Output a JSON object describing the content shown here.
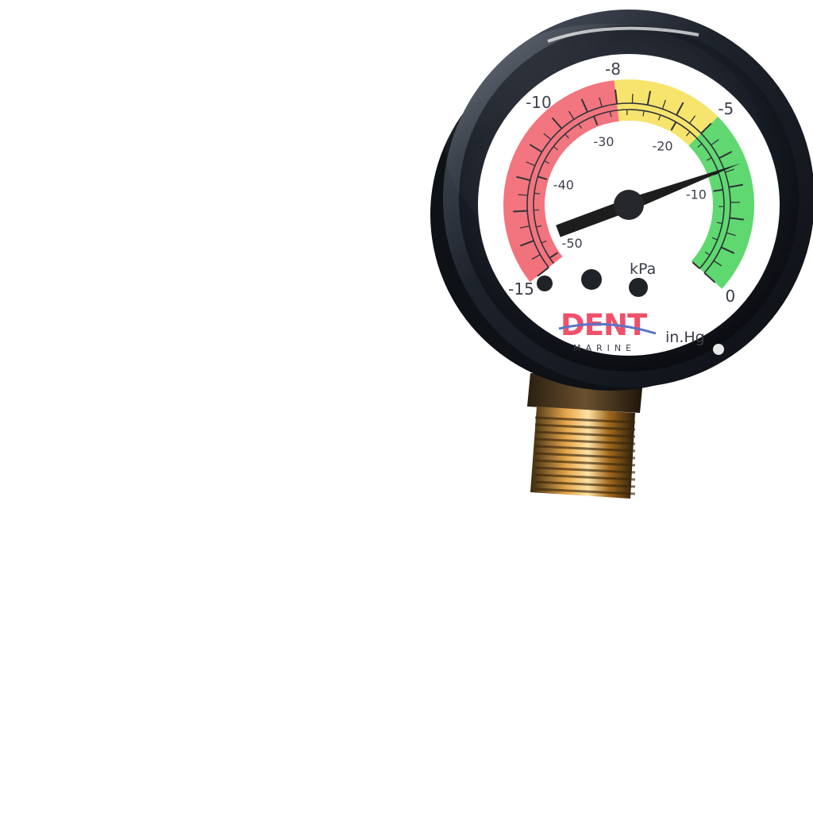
{
  "gauge": {
    "outer_scale": {
      "unit": "in.Hg",
      "labels": [
        {
          "text": "-15",
          "value": -15
        },
        {
          "text": "-10",
          "value": -10
        },
        {
          "text": "-8",
          "value": -8
        },
        {
          "text": "-5",
          "value": -5
        },
        {
          "text": "0",
          "value": 0
        }
      ],
      "min": -15,
      "max": 0
    },
    "inner_scale": {
      "unit": "kPa",
      "labels": [
        {
          "text": "-50",
          "value": -50
        },
        {
          "text": "-40",
          "value": -40
        },
        {
          "text": "-30",
          "value": -30
        },
        {
          "text": "-20",
          "value": -20
        },
        {
          "text": "-10",
          "value": -10
        }
      ],
      "min": -50.8,
      "max": 0
    },
    "zones": [
      {
        "name": "red",
        "from": -15,
        "to": -8,
        "color": "#f2727c"
      },
      {
        "name": "yellow",
        "from": -8,
        "to": -5,
        "color": "#f6e46a"
      },
      {
        "name": "green",
        "from": -5,
        "to": 0,
        "color": "#5fd870"
      }
    ],
    "needle_reading": -3.6,
    "brand": {
      "name": "DENT",
      "subtitle": "MARINE",
      "name_color": "#f0506a",
      "subtitle_color": "#5a74c6"
    },
    "colors": {
      "bezel": "#1b1f27",
      "face": "#ffffff",
      "needle": "#1a1a1a",
      "fitting": "#b9822e"
    }
  }
}
